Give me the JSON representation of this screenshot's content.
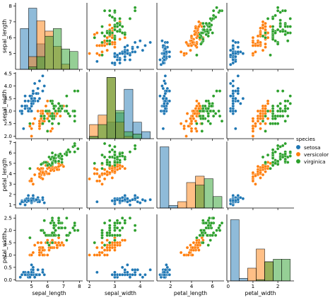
{
  "chart_data": {
    "type": "scatter",
    "layout": "pairplot",
    "variables": [
      "sepal_length",
      "sepal_width",
      "petal_length",
      "petal_width"
    ],
    "hue": "species",
    "legend": {
      "title": "species",
      "placement": "right",
      "entries": [
        {
          "name": "setosa",
          "color": "#1f77b4"
        },
        {
          "name": "versicolor",
          "color": "#ff7f0e"
        },
        {
          "name": "virginica",
          "color": "#2ca02c"
        }
      ]
    },
    "grid": false,
    "axes": {
      "sepal_length": {
        "label": "sepal_length",
        "range": [
          4.0,
          8.2
        ],
        "ticks": [
          "5",
          "6",
          "7",
          "8"
        ]
      },
      "sepal_width": {
        "label": "sepal_width",
        "range": [
          1.9,
          4.55
        ],
        "ticks": [
          "2.0",
          "2.5",
          "3.0",
          "3.5",
          "4.0",
          "4.5"
        ],
        "xticks": [
          "2",
          "3",
          "4"
        ]
      },
      "petal_length": {
        "label": "petal_length",
        "range": [
          0.7,
          7.1
        ],
        "ticks": [
          "1",
          "2",
          "3",
          "4",
          "5",
          "6",
          "7"
        ],
        "xticks": [
          "2",
          "4",
          "6"
        ]
      },
      "petal_width": {
        "label": "petal_width",
        "range": [
          -0.05,
          2.65
        ],
        "ticks": [
          "0.0",
          "0.5",
          "1.0",
          "1.5",
          "2.0",
          "2.5"
        ],
        "xticks": [
          "0",
          "1",
          "2"
        ]
      }
    },
    "series": [
      {
        "name": "setosa",
        "color": "#1f77b4",
        "points": [
          [
            5.1,
            3.5,
            1.4,
            0.2
          ],
          [
            4.9,
            3.0,
            1.4,
            0.2
          ],
          [
            4.7,
            3.2,
            1.3,
            0.2
          ],
          [
            4.6,
            3.1,
            1.5,
            0.2
          ],
          [
            5.0,
            3.6,
            1.4,
            0.2
          ],
          [
            5.4,
            3.9,
            1.7,
            0.4
          ],
          [
            4.6,
            3.4,
            1.4,
            0.3
          ],
          [
            5.0,
            3.4,
            1.5,
            0.2
          ],
          [
            4.4,
            2.9,
            1.4,
            0.2
          ],
          [
            4.9,
            3.1,
            1.5,
            0.1
          ],
          [
            5.4,
            3.7,
            1.5,
            0.2
          ],
          [
            4.8,
            3.4,
            1.6,
            0.2
          ],
          [
            4.8,
            3.0,
            1.4,
            0.1
          ],
          [
            4.3,
            3.0,
            1.1,
            0.1
          ],
          [
            5.8,
            4.0,
            1.2,
            0.2
          ],
          [
            5.7,
            4.4,
            1.5,
            0.4
          ],
          [
            5.4,
            3.9,
            1.3,
            0.4
          ],
          [
            5.1,
            3.5,
            1.4,
            0.3
          ],
          [
            5.7,
            3.8,
            1.7,
            0.3
          ],
          [
            5.1,
            3.8,
            1.5,
            0.3
          ],
          [
            5.4,
            3.4,
            1.7,
            0.2
          ],
          [
            5.1,
            3.7,
            1.5,
            0.4
          ],
          [
            4.6,
            3.6,
            1.0,
            0.2
          ],
          [
            5.1,
            3.3,
            1.7,
            0.5
          ],
          [
            4.8,
            3.4,
            1.9,
            0.2
          ],
          [
            5.0,
            3.0,
            1.6,
            0.2
          ],
          [
            5.0,
            3.4,
            1.6,
            0.4
          ],
          [
            5.2,
            3.5,
            1.5,
            0.2
          ],
          [
            5.2,
            3.4,
            1.4,
            0.2
          ],
          [
            4.7,
            3.2,
            1.6,
            0.2
          ],
          [
            4.8,
            3.1,
            1.6,
            0.2
          ],
          [
            5.4,
            3.4,
            1.5,
            0.4
          ],
          [
            5.2,
            4.1,
            1.5,
            0.1
          ],
          [
            5.5,
            4.2,
            1.4,
            0.2
          ],
          [
            4.9,
            3.1,
            1.5,
            0.2
          ],
          [
            5.0,
            3.2,
            1.2,
            0.2
          ],
          [
            5.5,
            3.5,
            1.3,
            0.2
          ],
          [
            4.9,
            3.6,
            1.4,
            0.1
          ],
          [
            4.4,
            3.0,
            1.3,
            0.2
          ],
          [
            5.1,
            3.4,
            1.5,
            0.2
          ],
          [
            5.0,
            3.5,
            1.3,
            0.3
          ],
          [
            4.5,
            2.3,
            1.3,
            0.3
          ],
          [
            4.4,
            3.2,
            1.3,
            0.2
          ],
          [
            5.0,
            3.5,
            1.6,
            0.6
          ],
          [
            5.1,
            3.8,
            1.9,
            0.4
          ],
          [
            4.8,
            3.0,
            1.4,
            0.3
          ],
          [
            5.1,
            3.8,
            1.6,
            0.2
          ],
          [
            4.6,
            3.2,
            1.4,
            0.2
          ],
          [
            5.3,
            3.7,
            1.5,
            0.2
          ],
          [
            5.0,
            3.3,
            1.4,
            0.2
          ]
        ]
      },
      {
        "name": "versicolor",
        "color": "#ff7f0e",
        "points": [
          [
            7.0,
            3.2,
            4.7,
            1.4
          ],
          [
            6.4,
            3.2,
            4.5,
            1.5
          ],
          [
            6.9,
            3.1,
            4.9,
            1.5
          ],
          [
            5.5,
            2.3,
            4.0,
            1.3
          ],
          [
            6.5,
            2.8,
            4.6,
            1.5
          ],
          [
            5.7,
            2.8,
            4.5,
            1.3
          ],
          [
            6.3,
            3.3,
            4.7,
            1.6
          ],
          [
            4.9,
            2.4,
            3.3,
            1.0
          ],
          [
            6.6,
            2.9,
            4.6,
            1.3
          ],
          [
            5.2,
            2.7,
            3.9,
            1.4
          ],
          [
            5.0,
            2.0,
            3.5,
            1.0
          ],
          [
            5.9,
            3.0,
            4.2,
            1.5
          ],
          [
            6.0,
            2.2,
            4.0,
            1.0
          ],
          [
            6.1,
            2.9,
            4.7,
            1.4
          ],
          [
            5.6,
            2.9,
            3.6,
            1.3
          ],
          [
            6.7,
            3.1,
            4.4,
            1.4
          ],
          [
            5.6,
            3.0,
            4.5,
            1.5
          ],
          [
            5.8,
            2.7,
            4.1,
            1.0
          ],
          [
            6.2,
            2.2,
            4.5,
            1.5
          ],
          [
            5.6,
            2.5,
            3.9,
            1.1
          ],
          [
            5.9,
            3.2,
            4.8,
            1.8
          ],
          [
            6.1,
            2.8,
            4.0,
            1.3
          ],
          [
            6.3,
            2.5,
            4.9,
            1.5
          ],
          [
            6.1,
            2.8,
            4.7,
            1.2
          ],
          [
            6.4,
            2.9,
            4.3,
            1.3
          ],
          [
            6.6,
            3.0,
            4.4,
            1.4
          ],
          [
            6.8,
            2.8,
            4.8,
            1.4
          ],
          [
            6.7,
            3.0,
            5.0,
            1.7
          ],
          [
            6.0,
            2.9,
            4.5,
            1.5
          ],
          [
            5.7,
            2.6,
            3.5,
            1.0
          ],
          [
            5.5,
            2.4,
            3.8,
            1.1
          ],
          [
            5.5,
            2.4,
            3.7,
            1.0
          ],
          [
            5.8,
            2.7,
            3.9,
            1.2
          ],
          [
            6.0,
            2.7,
            5.1,
            1.6
          ],
          [
            5.4,
            3.0,
            4.5,
            1.5
          ],
          [
            6.0,
            3.4,
            4.5,
            1.6
          ],
          [
            6.7,
            3.1,
            4.7,
            1.5
          ],
          [
            6.3,
            2.3,
            4.4,
            1.3
          ],
          [
            5.6,
            3.0,
            4.1,
            1.3
          ],
          [
            5.5,
            2.5,
            4.0,
            1.3
          ],
          [
            5.5,
            2.6,
            4.4,
            1.2
          ],
          [
            6.1,
            3.0,
            4.6,
            1.4
          ],
          [
            5.8,
            2.6,
            4.0,
            1.2
          ],
          [
            5.0,
            2.3,
            3.3,
            1.0
          ],
          [
            5.6,
            2.7,
            4.2,
            1.3
          ],
          [
            5.7,
            3.0,
            4.2,
            1.2
          ],
          [
            5.7,
            2.9,
            4.2,
            1.3
          ],
          [
            6.2,
            2.9,
            4.3,
            1.3
          ],
          [
            5.1,
            2.5,
            3.0,
            1.1
          ],
          [
            5.7,
            2.8,
            4.1,
            1.3
          ]
        ]
      },
      {
        "name": "virginica",
        "color": "#2ca02c",
        "points": [
          [
            6.3,
            3.3,
            6.0,
            2.5
          ],
          [
            5.8,
            2.7,
            5.1,
            1.9
          ],
          [
            7.1,
            3.0,
            5.9,
            2.1
          ],
          [
            6.3,
            2.9,
            5.6,
            1.8
          ],
          [
            6.5,
            3.0,
            5.8,
            2.2
          ],
          [
            7.6,
            3.0,
            6.6,
            2.1
          ],
          [
            4.9,
            2.5,
            4.5,
            1.7
          ],
          [
            7.3,
            2.9,
            6.3,
            1.8
          ],
          [
            6.7,
            2.5,
            5.8,
            1.8
          ],
          [
            7.2,
            3.6,
            6.1,
            2.5
          ],
          [
            6.5,
            3.2,
            5.1,
            2.0
          ],
          [
            6.4,
            2.7,
            5.3,
            1.9
          ],
          [
            6.8,
            3.0,
            5.5,
            2.1
          ],
          [
            5.7,
            2.5,
            5.0,
            2.0
          ],
          [
            5.8,
            2.8,
            5.1,
            2.4
          ],
          [
            6.4,
            3.2,
            5.3,
            2.3
          ],
          [
            6.5,
            3.0,
            5.5,
            1.8
          ],
          [
            7.7,
            3.8,
            6.7,
            2.2
          ],
          [
            7.7,
            2.6,
            6.9,
            2.3
          ],
          [
            6.0,
            2.2,
            5.0,
            1.5
          ],
          [
            6.9,
            3.2,
            5.7,
            2.3
          ],
          [
            5.6,
            2.8,
            4.9,
            2.0
          ],
          [
            7.7,
            2.8,
            6.7,
            2.0
          ],
          [
            6.3,
            2.7,
            4.9,
            1.8
          ],
          [
            6.7,
            3.3,
            5.7,
            2.1
          ],
          [
            7.2,
            3.2,
            6.0,
            1.8
          ],
          [
            6.2,
            2.8,
            4.8,
            1.8
          ],
          [
            6.1,
            3.0,
            4.9,
            1.8
          ],
          [
            6.4,
            2.8,
            5.6,
            2.1
          ],
          [
            7.2,
            3.0,
            5.8,
            1.6
          ],
          [
            7.4,
            2.8,
            6.1,
            1.9
          ],
          [
            7.9,
            3.8,
            6.4,
            2.0
          ],
          [
            6.4,
            2.8,
            5.6,
            2.2
          ],
          [
            6.3,
            2.8,
            5.1,
            1.5
          ],
          [
            6.1,
            2.6,
            5.6,
            1.4
          ],
          [
            7.7,
            3.0,
            6.1,
            2.3
          ],
          [
            6.3,
            3.4,
            5.6,
            2.4
          ],
          [
            6.4,
            3.1,
            5.5,
            1.8
          ],
          [
            6.0,
            3.0,
            4.8,
            1.8
          ],
          [
            6.9,
            3.1,
            5.4,
            2.1
          ],
          [
            6.7,
            3.1,
            5.6,
            2.4
          ],
          [
            6.9,
            3.1,
            5.1,
            2.3
          ],
          [
            5.8,
            2.7,
            5.1,
            1.9
          ],
          [
            6.8,
            3.2,
            5.9,
            2.3
          ],
          [
            6.7,
            3.3,
            5.7,
            2.5
          ],
          [
            6.7,
            3.0,
            5.2,
            2.3
          ],
          [
            6.3,
            2.5,
            5.0,
            1.9
          ],
          [
            6.5,
            3.0,
            5.2,
            2.0
          ],
          [
            6.2,
            3.4,
            5.4,
            2.3
          ],
          [
            5.9,
            3.0,
            5.1,
            1.8
          ]
        ]
      }
    ]
  }
}
